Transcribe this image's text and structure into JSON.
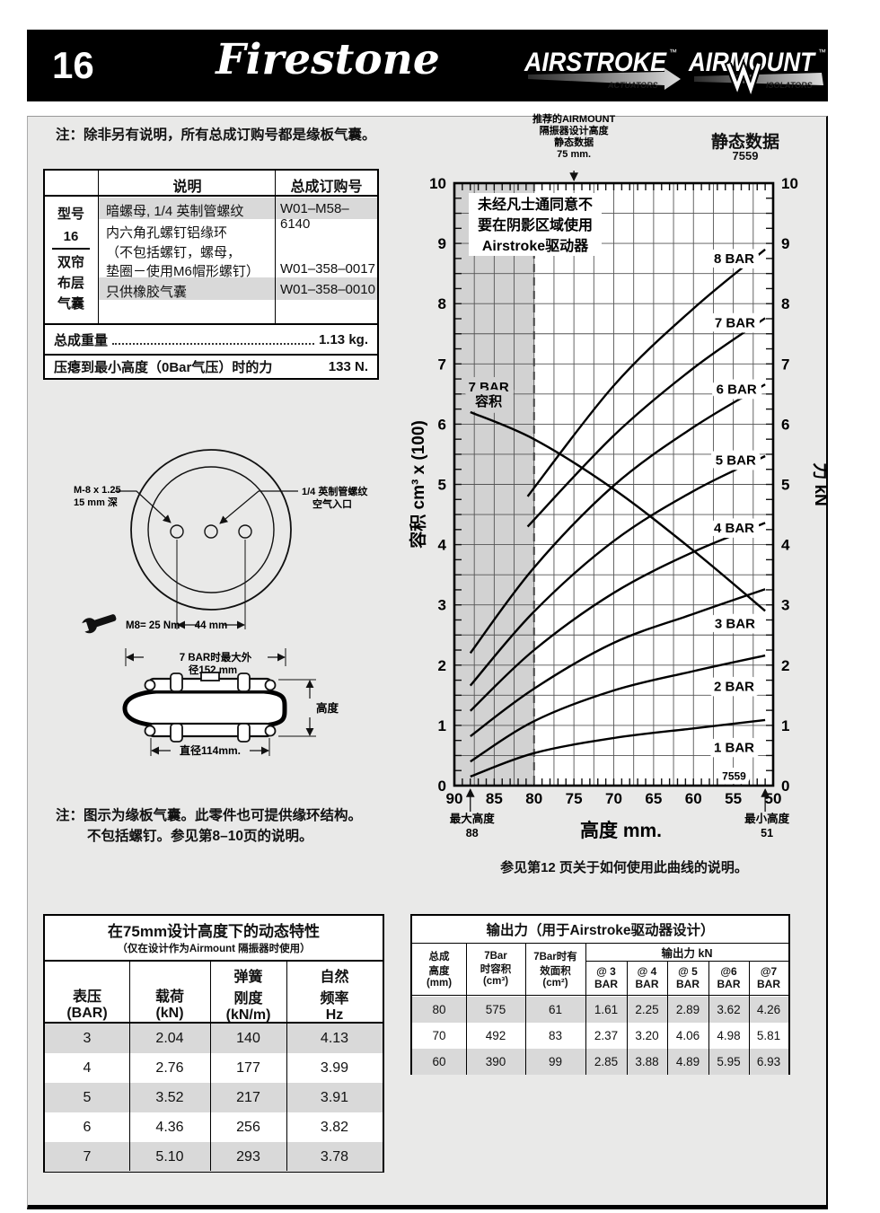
{
  "header": {
    "page_number": "16",
    "brand": "Firestone",
    "airstroke": {
      "name": "AIRSTROKE",
      "tm": "™",
      "sub": "ACTUATORS"
    },
    "airmount": {
      "name": "AIRMOUNT",
      "tm": "™",
      "sub": "ISOLATORS"
    }
  },
  "top_note": "注：除非另有说明，所有总成订购号都是缘板气囊。",
  "parts_table": {
    "model_labels": [
      "型号",
      "16",
      "双帘",
      "布层",
      "气囊"
    ],
    "col_desc": "说明",
    "col_order": "总成订购号",
    "rows": [
      {
        "desc": [
          "暗螺母, 1/4 英制管螺纹"
        ],
        "order": "W01–M58–6140"
      },
      {
        "desc": [
          "内六角孔螺钉铝缘环",
          "（不包括螺钉，螺母，",
          "垫圈－使用M6帽形螺钉）"
        ],
        "order": "W01–358–0017"
      },
      {
        "desc": [
          "只供橡胶气囊"
        ],
        "order": "W01–358–0010"
      }
    ],
    "weight_label": "总成重量",
    "weight_value": "1.13 kg.",
    "crush_label": "压瘪到最小高度（0Bar气压）时的力",
    "crush_value": "133 N."
  },
  "drawings": {
    "bolt_line1": "M-8 x 1.25",
    "bolt_line2": "15 mm 深",
    "inlet_line1": "1/4 英制管螺纹",
    "inlet_line2": "空气入口",
    "torque": "M8= 25 Nm",
    "bolt_spacing": "44 mm",
    "od_line1": "7 BAR时最大外",
    "od_line2": "径152 mm",
    "height_label": "高度",
    "diameter_label": "直径114mm."
  },
  "drawing_note": {
    "line1": "注：图示为缘板气囊。此零件也可提供缘环结构。",
    "line2": "不包括螺钉。参见第8–10页的说明。"
  },
  "static_data_title": "静态数据",
  "static_data_number": "7559",
  "chart_caption": "参见第12 页关于如何使用此曲线的说明。",
  "chart_data": {
    "type": "line",
    "title": "静态数据 7559",
    "design_note_lines": [
      "推荐的AIRMOUNT",
      "隔振器设计高度",
      "静态数据",
      "75 mm."
    ],
    "design_height_mm": 75,
    "warning_lines": [
      "未经凡士通同意不",
      "要在阴影区域使用",
      "Airstroke驱动器"
    ],
    "xlabel": "高度 mm.",
    "ylabel_left": "容积 cm³ x (100)",
    "ylabel_right": "力 kN",
    "xlim": [
      90,
      50
    ],
    "ylim": [
      0,
      10
    ],
    "x_ticks": [
      90,
      85,
      80,
      75,
      70,
      65,
      60,
      55,
      50
    ],
    "y_ticks": [
      0,
      1,
      2,
      3,
      4,
      5,
      6,
      7,
      8,
      9,
      10
    ],
    "grid": "on",
    "shaded_region_x": [
      90,
      80
    ],
    "dashed_line_x": 80,
    "height_arrows": [
      {
        "x": 88,
        "lines": [
          "最大高度",
          "88"
        ]
      },
      {
        "x": 51,
        "lines": [
          "最小高度",
          "51"
        ]
      }
    ],
    "chart_number": {
      "text": "7559",
      "at": [
        54.9,
        0.1
      ]
    },
    "series": [
      {
        "name": "1 BAR",
        "points": [
          [
            88,
            0.15
          ],
          [
            80,
            0.54
          ],
          [
            70,
            0.79
          ],
          [
            60,
            0.95
          ],
          [
            51,
            1.09
          ]
        ],
        "label_at": [
          54.9,
          0.63
        ]
      },
      {
        "name": "2 BAR",
        "points": [
          [
            88,
            0.4
          ],
          [
            80,
            1.07
          ],
          [
            70,
            1.58
          ],
          [
            60,
            1.9
          ],
          [
            51,
            2.16
          ]
        ],
        "label_at": [
          54.9,
          1.65
        ]
      },
      {
        "name": "3 BAR",
        "points": [
          [
            88,
            0.82
          ],
          [
            80,
            1.61
          ],
          [
            70,
            2.37
          ],
          [
            60,
            2.85
          ],
          [
            51,
            3.26
          ]
        ],
        "label_at": [
          54.8,
          2.69
        ]
      },
      {
        "name": "4 BAR",
        "points": [
          [
            88,
            1.24
          ],
          [
            80,
            2.25
          ],
          [
            70,
            3.2
          ],
          [
            60,
            3.88
          ],
          [
            51,
            4.36
          ]
        ],
        "label_at": [
          54.9,
          4.28
        ]
      },
      {
        "name": "5 BAR",
        "points": [
          [
            88,
            1.66
          ],
          [
            80,
            2.89
          ],
          [
            70,
            4.06
          ],
          [
            60,
            4.89
          ],
          [
            51,
            5.47
          ]
        ],
        "label_at": [
          54.7,
          5.4
        ]
      },
      {
        "name": "6 BAR",
        "points": [
          [
            88,
            2.2
          ],
          [
            80,
            3.62
          ],
          [
            70,
            4.98
          ],
          [
            60,
            5.95
          ],
          [
            51,
            6.66
          ]
        ],
        "label_at": [
          54.6,
          6.58
        ]
      },
      {
        "name": "7 BAR",
        "points": [
          [
            80.8,
            4.3
          ],
          [
            70,
            5.81
          ],
          [
            60,
            6.93
          ],
          [
            51,
            7.76
          ]
        ],
        "label_at": [
          54.8,
          7.68
        ]
      },
      {
        "name": "8 BAR",
        "points": [
          [
            80.8,
            4.8
          ],
          [
            70,
            6.64
          ],
          [
            60,
            7.92
          ],
          [
            51,
            8.9
          ]
        ],
        "label_at": [
          54.9,
          8.75
        ]
      },
      {
        "name": "7 BAR 容积",
        "label_lines": [
          "7 BAR",
          "容积"
        ],
        "points": [
          [
            88,
            6.2
          ],
          [
            80,
            5.75
          ],
          [
            70,
            4.92
          ],
          [
            60,
            3.9
          ],
          [
            51,
            2.9
          ]
        ],
        "label_at": [
          85.7,
          6.62
        ],
        "label_bg": "gray"
      }
    ]
  },
  "dynamic_table": {
    "title": "在75mm设计高度下的动态特性",
    "subtitle": "（仅在设计作为Airmount 隔振器时使用）",
    "headers": [
      [
        "表压",
        "(BAR)"
      ],
      [
        "载荷",
        "(kN)"
      ],
      [
        "弹簧",
        "刚度",
        "(kN/m)"
      ],
      [
        "自然",
        "频率",
        "Hz"
      ]
    ],
    "rows": [
      [
        "3",
        "2.04",
        "140",
        "4.13"
      ],
      [
        "4",
        "2.76",
        "177",
        "3.99"
      ],
      [
        "5",
        "3.52",
        "217",
        "3.91"
      ],
      [
        "6",
        "4.36",
        "256",
        "3.82"
      ],
      [
        "7",
        "5.10",
        "293",
        "3.78"
      ]
    ]
  },
  "output_table": {
    "title": "输出力（用于Airstroke驱动器设计）",
    "col1": [
      "总成",
      "高度",
      "(mm)"
    ],
    "col2": [
      "7Bar",
      "时容积",
      "(cm³)"
    ],
    "col3": [
      "7Bar时有",
      "效面积",
      "(cm²)"
    ],
    "span_header": "输出力 kN",
    "sub_headers": [
      [
        "@ 3",
        "BAR"
      ],
      [
        "@ 4",
        "BAR"
      ],
      [
        "@ 5",
        "BAR"
      ],
      [
        "@6",
        "BAR"
      ],
      [
        "@7",
        "BAR"
      ]
    ],
    "rows": [
      [
        "80",
        "575",
        "61",
        "1.61",
        "2.25",
        "2.89",
        "3.62",
        "4.26"
      ],
      [
        "70",
        "492",
        "83",
        "2.37",
        "3.20",
        "4.06",
        "4.98",
        "5.81"
      ],
      [
        "60",
        "390",
        "99",
        "2.85",
        "3.88",
        "4.89",
        "5.95",
        "6.93"
      ]
    ]
  }
}
